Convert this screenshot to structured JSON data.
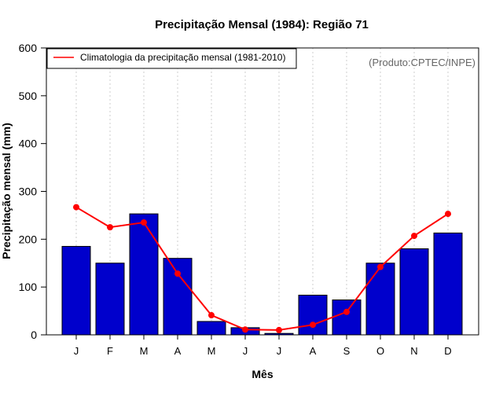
{
  "colors": {
    "bar": "#0000cc",
    "bar_edge": "#000000",
    "line": "#ff0000",
    "grid": "#cccccc",
    "product_text": "#666666"
  },
  "product_label": "(Produto:CPTEC/INPE)",
  "chart_data": {
    "type": "bar",
    "title": "Precipitação Mensal (1984): Região 71",
    "xlabel": "Mês",
    "ylabel": "Precipitação mensal (mm)",
    "ylim": [
      0,
      600
    ],
    "yticks": [
      0,
      100,
      200,
      300,
      400,
      500,
      600
    ],
    "grid": "vertical-dotted",
    "legend_position": "top-left",
    "categories": [
      "J",
      "F",
      "M",
      "A",
      "M",
      "J",
      "J",
      "A",
      "S",
      "O",
      "N",
      "D"
    ],
    "series": [
      {
        "name": "Precipitação mensal (1984)",
        "type": "bar",
        "values": [
          185,
          150,
          253,
          160,
          28,
          15,
          3,
          83,
          73,
          150,
          180,
          213
        ]
      },
      {
        "name": "Climatologia da precipitação mensal (1981-2010)",
        "type": "line",
        "values": [
          267,
          225,
          235,
          128,
          41,
          11,
          10,
          21,
          48,
          142,
          207,
          253
        ]
      }
    ]
  }
}
